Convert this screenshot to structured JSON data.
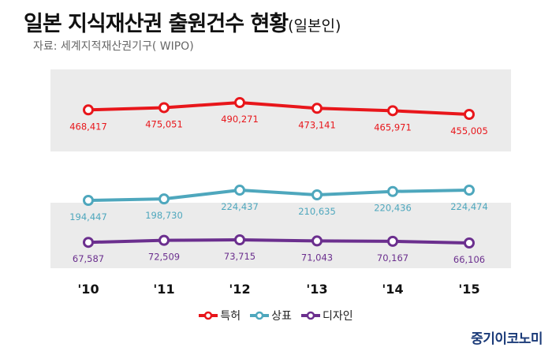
{
  "title": "일본 지식재산권 출원건수 현황",
  "title_suffix": "(일본인)",
  "source": "자료: 세계지적재산권기구( WIPO)",
  "brand": "중기이코노미",
  "chart_data": {
    "type": "line",
    "categories": [
      "'10",
      "'11",
      "'12",
      "'13",
      "'14",
      "'15"
    ],
    "series": [
      {
        "name": "특허",
        "color": "#e8161b",
        "values": [
          468417,
          475051,
          490271,
          473141,
          465971,
          455005
        ],
        "labels": [
          "468,417",
          "475,051",
          "490,271",
          "473,141",
          "465,971",
          "455,005"
        ]
      },
      {
        "name": "상표",
        "color": "#4ea7bd",
        "values": [
          194447,
          198730,
          224437,
          210635,
          220436,
          224474
        ],
        "labels": [
          "194,447",
          "198,730",
          "224,437",
          "210,635",
          "220,436",
          "224,474"
        ]
      },
      {
        "name": "디자인",
        "color": "#6b2f8e",
        "values": [
          67587,
          72509,
          73715,
          71043,
          70167,
          66106
        ],
        "labels": [
          "67,587",
          "72,509",
          "73,715",
          "71,043",
          "70,167",
          "66,106"
        ]
      }
    ],
    "legend_position": "bottom-center",
    "grid": false
  }
}
